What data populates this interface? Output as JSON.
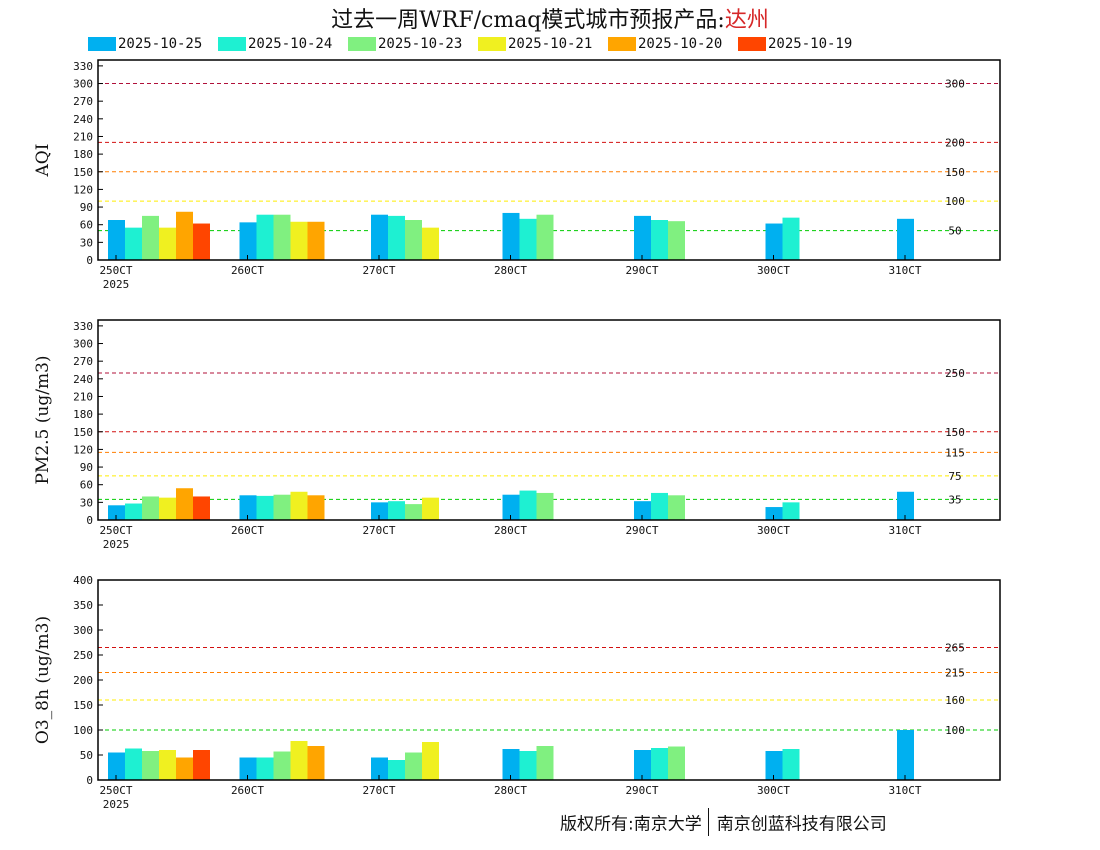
{
  "title": {
    "prefix": "过去一周WRF/cmaq模式城市预报产品:",
    "city": "达州"
  },
  "legend": [
    {
      "label": "2025-10-25",
      "color": "#00b0f0"
    },
    {
      "label": "2025-10-24",
      "color": "#1ef0d2"
    },
    {
      "label": "2025-10-23",
      "color": "#80f080"
    },
    {
      "label": "2025-10-21",
      "color": "#f0f020"
    },
    {
      "label": "2025-10-20",
      "color": "#ffa500"
    },
    {
      "label": "2025-10-19",
      "color": "#ff4500"
    }
  ],
  "copyright": {
    "left": "版权所有:南京大学",
    "right": "南京创蓝科技有限公司"
  },
  "chart_data": [
    {
      "type": "bar",
      "ylabel": "AQI",
      "ylim": [
        0,
        340
      ],
      "yticks": [
        0,
        30,
        60,
        90,
        120,
        150,
        180,
        210,
        240,
        270,
        300,
        330
      ],
      "xlim": [
        25,
        32.5
      ],
      "xticks": [
        {
          "pos": 25,
          "label": "250CT",
          "sub": "2025"
        },
        {
          "pos": 26,
          "label": "260CT"
        },
        {
          "pos": 27,
          "label": "270CT"
        },
        {
          "pos": 28,
          "label": "280CT"
        },
        {
          "pos": 29,
          "label": "290CT"
        },
        {
          "pos": 30,
          "label": "300CT"
        },
        {
          "pos": 31,
          "label": "310CT"
        }
      ],
      "thresholds": [
        {
          "value": 300,
          "label": "300",
          "color": "#b0103a"
        },
        {
          "value": 200,
          "label": "200",
          "color": "#d21010"
        },
        {
          "value": 150,
          "label": "150",
          "color": "#ff7f00"
        },
        {
          "value": 100,
          "label": "100",
          "color": "#ffee00"
        },
        {
          "value": 50,
          "label": "50",
          "color": "#00cc00"
        }
      ],
      "series": [
        {
          "legend_index": 0,
          "points": [
            [
              25,
              68
            ],
            [
              26,
              64
            ],
            [
              27,
              77
            ],
            [
              28,
              80
            ],
            [
              29,
              75
            ],
            [
              30,
              62
            ],
            [
              31,
              70
            ]
          ]
        },
        {
          "legend_index": 1,
          "points": [
            [
              25,
              55
            ],
            [
              26,
              77
            ],
            [
              27,
              75
            ],
            [
              28,
              70
            ],
            [
              29,
              68
            ],
            [
              30,
              72
            ]
          ]
        },
        {
          "legend_index": 2,
          "points": [
            [
              25,
              75
            ],
            [
              26,
              77
            ],
            [
              27,
              68
            ],
            [
              28,
              77
            ],
            [
              29,
              66
            ]
          ]
        },
        {
          "legend_index": 3,
          "points": [
            [
              25,
              55
            ],
            [
              26,
              65
            ],
            [
              27,
              55
            ]
          ]
        },
        {
          "legend_index": 4,
          "points": [
            [
              25,
              82
            ],
            [
              26,
              65
            ]
          ]
        },
        {
          "legend_index": 5,
          "points": [
            [
              25,
              62
            ]
          ]
        }
      ]
    },
    {
      "type": "bar",
      "ylabel": "PM2.5 (ug/m3)",
      "ylim": [
        0,
        340
      ],
      "yticks": [
        0,
        30,
        60,
        90,
        120,
        150,
        180,
        210,
        240,
        270,
        300,
        330
      ],
      "xlim": [
        25,
        32.5
      ],
      "xticks": [
        {
          "pos": 25,
          "label": "250CT",
          "sub": "2025"
        },
        {
          "pos": 26,
          "label": "260CT"
        },
        {
          "pos": 27,
          "label": "270CT"
        },
        {
          "pos": 28,
          "label": "280CT"
        },
        {
          "pos": 29,
          "label": "290CT"
        },
        {
          "pos": 30,
          "label": "300CT"
        },
        {
          "pos": 31,
          "label": "310CT"
        }
      ],
      "thresholds": [
        {
          "value": 250,
          "label": "250",
          "color": "#b0103a"
        },
        {
          "value": 150,
          "label": "150",
          "color": "#d21010"
        },
        {
          "value": 115,
          "label": "115",
          "color": "#ff7f00"
        },
        {
          "value": 75,
          "label": "75",
          "color": "#ffee00"
        },
        {
          "value": 35,
          "label": "35",
          "color": "#00cc00"
        }
      ],
      "series": [
        {
          "legend_index": 0,
          "points": [
            [
              25,
              25
            ],
            [
              26,
              42
            ],
            [
              27,
              30
            ],
            [
              28,
              43
            ],
            [
              29,
              32
            ],
            [
              30,
              22
            ],
            [
              31,
              48
            ]
          ]
        },
        {
          "legend_index": 1,
          "points": [
            [
              25,
              28
            ],
            [
              26,
              41
            ],
            [
              27,
              32
            ],
            [
              28,
              50
            ],
            [
              29,
              46
            ],
            [
              30,
              30
            ]
          ]
        },
        {
          "legend_index": 2,
          "points": [
            [
              25,
              40
            ],
            [
              26,
              43
            ],
            [
              27,
              27
            ],
            [
              28,
              46
            ],
            [
              29,
              42
            ]
          ]
        },
        {
          "legend_index": 3,
          "points": [
            [
              25,
              38
            ],
            [
              26,
              48
            ],
            [
              27,
              38
            ]
          ]
        },
        {
          "legend_index": 4,
          "points": [
            [
              25,
              54
            ],
            [
              26,
              42
            ]
          ]
        },
        {
          "legend_index": 5,
          "points": [
            [
              25,
              40
            ]
          ]
        }
      ]
    },
    {
      "type": "bar",
      "ylabel": "O3_8h (ug/m3)",
      "ylim": [
        0,
        400
      ],
      "yticks": [
        0,
        50,
        100,
        150,
        200,
        250,
        300,
        350,
        400
      ],
      "xlim": [
        25,
        32.5
      ],
      "xticks": [
        {
          "pos": 25,
          "label": "250CT",
          "sub": "2025"
        },
        {
          "pos": 26,
          "label": "260CT"
        },
        {
          "pos": 27,
          "label": "270CT"
        },
        {
          "pos": 28,
          "label": "280CT"
        },
        {
          "pos": 29,
          "label": "290CT"
        },
        {
          "pos": 30,
          "label": "300CT"
        },
        {
          "pos": 31,
          "label": "310CT"
        }
      ],
      "thresholds": [
        {
          "value": 265,
          "label": "265",
          "color": "#d21010"
        },
        {
          "value": 215,
          "label": "215",
          "color": "#ff7f00"
        },
        {
          "value": 160,
          "label": "160",
          "color": "#ffee00"
        },
        {
          "value": 100,
          "label": "100",
          "color": "#00cc00"
        }
      ],
      "series": [
        {
          "legend_index": 0,
          "points": [
            [
              25,
              55
            ],
            [
              26,
              45
            ],
            [
              27,
              45
            ],
            [
              28,
              62
            ],
            [
              29,
              60
            ],
            [
              30,
              58
            ],
            [
              31,
              100
            ]
          ]
        },
        {
          "legend_index": 1,
          "points": [
            [
              25,
              63
            ],
            [
              26,
              45
            ],
            [
              27,
              40
            ],
            [
              28,
              58
            ],
            [
              29,
              64
            ],
            [
              30,
              62
            ]
          ]
        },
        {
          "legend_index": 2,
          "points": [
            [
              25,
              58
            ],
            [
              26,
              57
            ],
            [
              27,
              55
            ],
            [
              28,
              68
            ],
            [
              29,
              67
            ]
          ]
        },
        {
          "legend_index": 3,
          "points": [
            [
              25,
              60
            ],
            [
              26,
              78
            ],
            [
              27,
              76
            ]
          ]
        },
        {
          "legend_index": 4,
          "points": [
            [
              25,
              45
            ],
            [
              26,
              68
            ]
          ]
        },
        {
          "legend_index": 5,
          "points": [
            [
              25,
              60
            ]
          ]
        }
      ]
    }
  ]
}
